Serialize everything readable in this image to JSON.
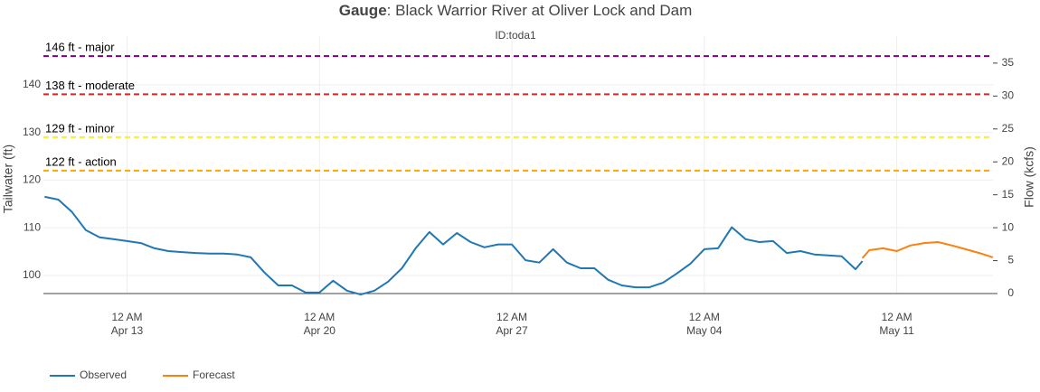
{
  "chart_data": {
    "type": "line",
    "title_prefix": "Gauge",
    "title": ": Black Warrior River at Oliver Lock and Dam",
    "subtitle": "ID:toda1",
    "y_label": "Tailwater (ft)",
    "y2_label": "Flow (kcfs)",
    "xlim": [
      "Apr 9 23:00",
      "May 14 12:00"
    ],
    "xticks": [
      {
        "value": "Apr 13 00:00",
        "label": [
          "12 AM",
          "Apr 13"
        ]
      },
      {
        "value": "Apr 20 00:00",
        "label": [
          "12 AM",
          "Apr 20"
        ]
      },
      {
        "value": "Apr 27 00:00",
        "label": [
          "12 AM",
          "Apr 27"
        ]
      },
      {
        "value": "May 4 00:00",
        "label": [
          "12 AM",
          "May 04"
        ]
      },
      {
        "value": "May 11 00:00",
        "label": [
          "12 AM",
          "May 11"
        ]
      }
    ],
    "ylim": [
      96.2,
      150.2
    ],
    "yticks": [
      100,
      110,
      120,
      130,
      140
    ],
    "y2lim": [
      0,
      39.1
    ],
    "y2ticks": [
      0,
      5,
      10,
      15,
      20,
      25,
      30,
      35
    ],
    "grid": true,
    "legend": "bottom-left",
    "thresholds": [
      {
        "value": 146,
        "label": "146 ft - major",
        "color": "#800080"
      },
      {
        "value": 138,
        "label": "138 ft - moderate",
        "color": "#d62728"
      },
      {
        "value": 129,
        "label": "129 ft - minor",
        "color": "#f2f22a"
      },
      {
        "value": 122,
        "label": "122 ft - action",
        "color": "#ffa500"
      }
    ],
    "series": [
      {
        "name": "Observed",
        "color": "#1f77b4",
        "x": [
          "Apr 10 00:00",
          "Apr 10 12:00",
          "Apr 11 00:00",
          "Apr 11 12:00",
          "Apr 12 00:00",
          "Apr 12 12:00",
          "Apr 13 00:00",
          "Apr 13 12:00",
          "Apr 14 00:00",
          "Apr 14 12:00",
          "Apr 15 00:00",
          "Apr 15 12:00",
          "Apr 16 00:00",
          "Apr 16 12:00",
          "Apr 17 00:00",
          "Apr 17 12:00",
          "Apr 18 00:00",
          "Apr 18 12:00",
          "Apr 19 00:00",
          "Apr 19 12:00",
          "Apr 20 00:00",
          "Apr 20 12:00",
          "Apr 21 00:00",
          "Apr 21 12:00",
          "Apr 22 00:00",
          "Apr 22 12:00",
          "Apr 23 00:00",
          "Apr 23 12:00",
          "Apr 24 00:00",
          "Apr 24 12:00",
          "Apr 25 00:00",
          "Apr 25 12:00",
          "Apr 26 00:00",
          "Apr 26 12:00",
          "Apr 27 00:00",
          "Apr 27 12:00",
          "Apr 28 00:00",
          "Apr 28 12:00",
          "Apr 29 00:00",
          "Apr 29 12:00",
          "Apr 30 00:00",
          "Apr 30 12:00",
          "May 1 00:00",
          "May 1 12:00",
          "May 2 00:00",
          "May 2 12:00",
          "May 3 00:00",
          "May 3 12:00",
          "May 4 00:00",
          "May 4 12:00",
          "May 5 00:00",
          "May 5 12:00",
          "May 6 00:00",
          "May 6 12:00",
          "May 7 00:00",
          "May 7 12:00",
          "May 8 00:00",
          "May 8 12:00",
          "May 9 00:00",
          "May 9 12:00",
          "May 9 18:00"
        ],
        "values": [
          116.5,
          115.9,
          113.3,
          109.5,
          108.0,
          107.6,
          107.2,
          106.8,
          105.7,
          105.1,
          104.9,
          104.7,
          104.6,
          104.6,
          104.4,
          103.8,
          100.6,
          97.9,
          97.9,
          96.4,
          96.4,
          98.9,
          96.8,
          96.0,
          96.8,
          98.7,
          101.5,
          105.7,
          109.1,
          106.5,
          108.9,
          107.0,
          105.9,
          106.5,
          106.5,
          103.2,
          102.7,
          105.5,
          102.7,
          101.5,
          101.5,
          99.1,
          97.9,
          97.5,
          97.5,
          98.5,
          100.4,
          102.5,
          105.5,
          105.7,
          110.1,
          107.6,
          107.0,
          107.2,
          104.7,
          105.1,
          104.4,
          104.2,
          104.0,
          101.3,
          103.0
        ]
      },
      {
        "name": "Forecast",
        "color": "#ff7f0e",
        "x": [
          "May 9 18:00",
          "May 10 00:00",
          "May 10 12:00",
          "May 11 00:00",
          "May 11 12:00",
          "May 12 00:00",
          "May 12 12:00",
          "May 13 00:00",
          "May 13 12:00",
          "May 14 00:00",
          "May 14 12:00"
        ],
        "values": [
          103.6,
          105.3,
          105.7,
          105.1,
          106.3,
          106.8,
          107.0,
          106.3,
          105.5,
          104.7,
          103.8
        ]
      }
    ]
  }
}
